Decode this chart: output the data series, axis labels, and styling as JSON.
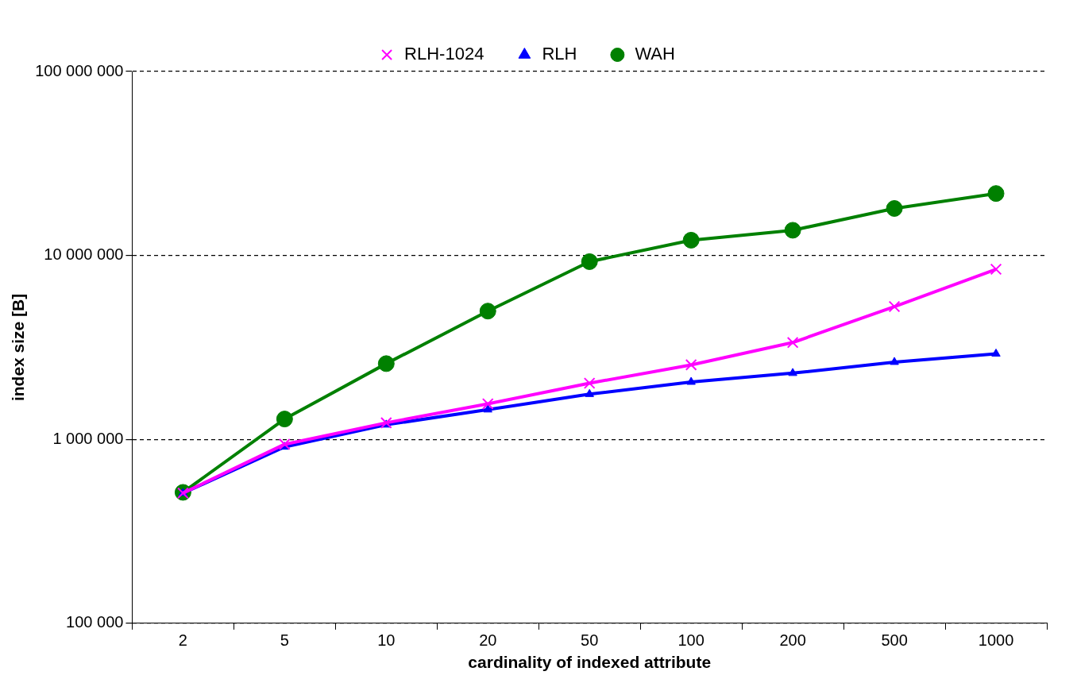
{
  "chart_data": {
    "type": "line",
    "xlabel": "cardinality of indexed attribute",
    "ylabel": "index size [B]",
    "categories": [
      "2",
      "5",
      "10",
      "20",
      "50",
      "100",
      "200",
      "500",
      "1000"
    ],
    "series": [
      {
        "name": "RLH",
        "color": "#0000ff",
        "marker": "triangle",
        "values": [
          510000,
          910000,
          1200000,
          1450000,
          1760000,
          2050000,
          2290000,
          2630000,
          2920000
        ]
      },
      {
        "name": "RLH-1024",
        "color": "#ff00ff",
        "marker": "cross",
        "values": [
          510000,
          940000,
          1230000,
          1560000,
          2020000,
          2540000,
          3360000,
          5270000,
          8410000
        ]
      },
      {
        "name": "WAH",
        "color": "#008000",
        "marker": "circle",
        "values": [
          515000,
          1290000,
          2580000,
          4980000,
          9250000,
          12100000,
          13700000,
          18000000,
          21700000
        ]
      }
    ],
    "log": "y",
    "ylim": [
      100000,
      100000000
    ],
    "yticks": [
      {
        "value": 100000,
        "label": "100 000"
      },
      {
        "value": 1000000,
        "label": "1 000 000"
      },
      {
        "value": 10000000,
        "label": "10 000 000"
      },
      {
        "value": 100000000,
        "label": "100 000 000"
      }
    ],
    "grid": "y",
    "legend": "top"
  }
}
